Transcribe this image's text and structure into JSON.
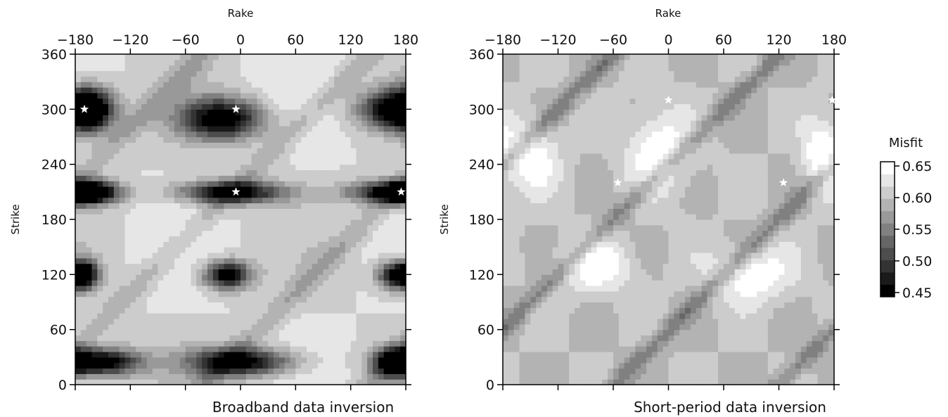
{
  "chart_data": [
    {
      "type": "heatmap",
      "subtitle": "Broadband data inversion",
      "xlabel": "Rake",
      "ylabel": "Strike",
      "x_ticks": [
        "−180",
        "−120",
        "−60",
        "0",
        "60",
        "120",
        "180"
      ],
      "y_ticks": [
        "0",
        "60",
        "120",
        "180",
        "240",
        "300",
        "360"
      ],
      "xlim": [
        -180,
        180
      ],
      "ylim": [
        0,
        360
      ],
      "colormap": "gray",
      "minima": [
        {
          "x": -170,
          "y": 300
        },
        {
          "x": -5,
          "y": 300
        },
        {
          "x": -5,
          "y": 210
        },
        {
          "x": 175,
          "y": 210
        }
      ]
    },
    {
      "type": "heatmap",
      "subtitle": "Short-period data inversion",
      "xlabel": "Rake",
      "ylabel": "Strike",
      "x_ticks": [
        "−180",
        "−120",
        "−60",
        "0",
        "60",
        "120",
        "180"
      ],
      "y_ticks": [
        "0",
        "60",
        "120",
        "180",
        "240",
        "300",
        "360"
      ],
      "xlim": [
        -180,
        180
      ],
      "ylim": [
        0,
        360
      ],
      "colormap": "gray",
      "minima": [
        {
          "x": 0,
          "y": 310
        },
        {
          "x": -55,
          "y": 220
        },
        {
          "x": 125,
          "y": 220
        },
        {
          "x": 178,
          "y": 310
        }
      ]
    }
  ],
  "colorbar": {
    "title": "Misfit",
    "labels": [
      "0.65",
      "0.60",
      "0.55",
      "0.50",
      "0.45"
    ],
    "range": [
      0.45,
      0.65
    ],
    "colors": [
      "#000000",
      "#1a1a1a",
      "#333333",
      "#4d4d4d",
      "#666666",
      "#808080",
      "#999999",
      "#b3b3b3",
      "#cccccc",
      "#e6e6e6",
      "#ffffff"
    ]
  }
}
